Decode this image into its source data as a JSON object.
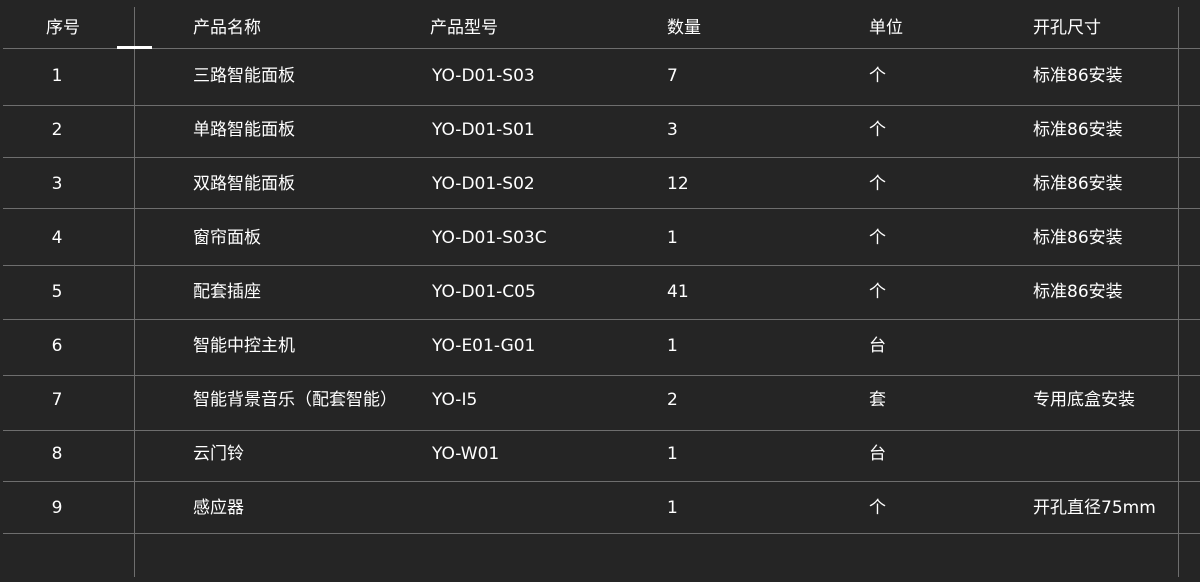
{
  "table": {
    "columns": [
      "序号",
      "产品名称",
      "产品型号",
      "数量",
      "单位",
      "开孔尺寸"
    ],
    "rows": [
      [
        "1",
        "三路智能面板",
        "YO-D01-S03",
        "7",
        "个",
        "标准86安装"
      ],
      [
        "2",
        "单路智能面板",
        "YO-D01-S01",
        "3",
        "个",
        "标准86安装"
      ],
      [
        "3",
        "双路智能面板",
        "YO-D01-S02",
        "12",
        "个",
        "标准86安装"
      ],
      [
        "4",
        "窗帘面板",
        "YO-D01-S03C",
        "1",
        "个",
        "标准86安装"
      ],
      [
        "5",
        "配套插座",
        "YO-D01-C05",
        "41",
        "个",
        "标准86安装"
      ],
      [
        "6",
        "智能中控主机",
        "YO-E01-G01",
        "1",
        "台",
        ""
      ],
      [
        "7",
        "智能背景音乐（配套智能）",
        "YO-I5",
        "2",
        "套",
        "专用底盒安装"
      ],
      [
        "8",
        "云门铃",
        "YO-W01",
        "1",
        "台",
        ""
      ],
      [
        "9",
        "感应器",
        "",
        "1",
        "个",
        "开孔直径75mm"
      ]
    ]
  },
  "colors": {
    "background": "#252525",
    "grid": "#6e6e6e",
    "text": "#ffffff"
  }
}
